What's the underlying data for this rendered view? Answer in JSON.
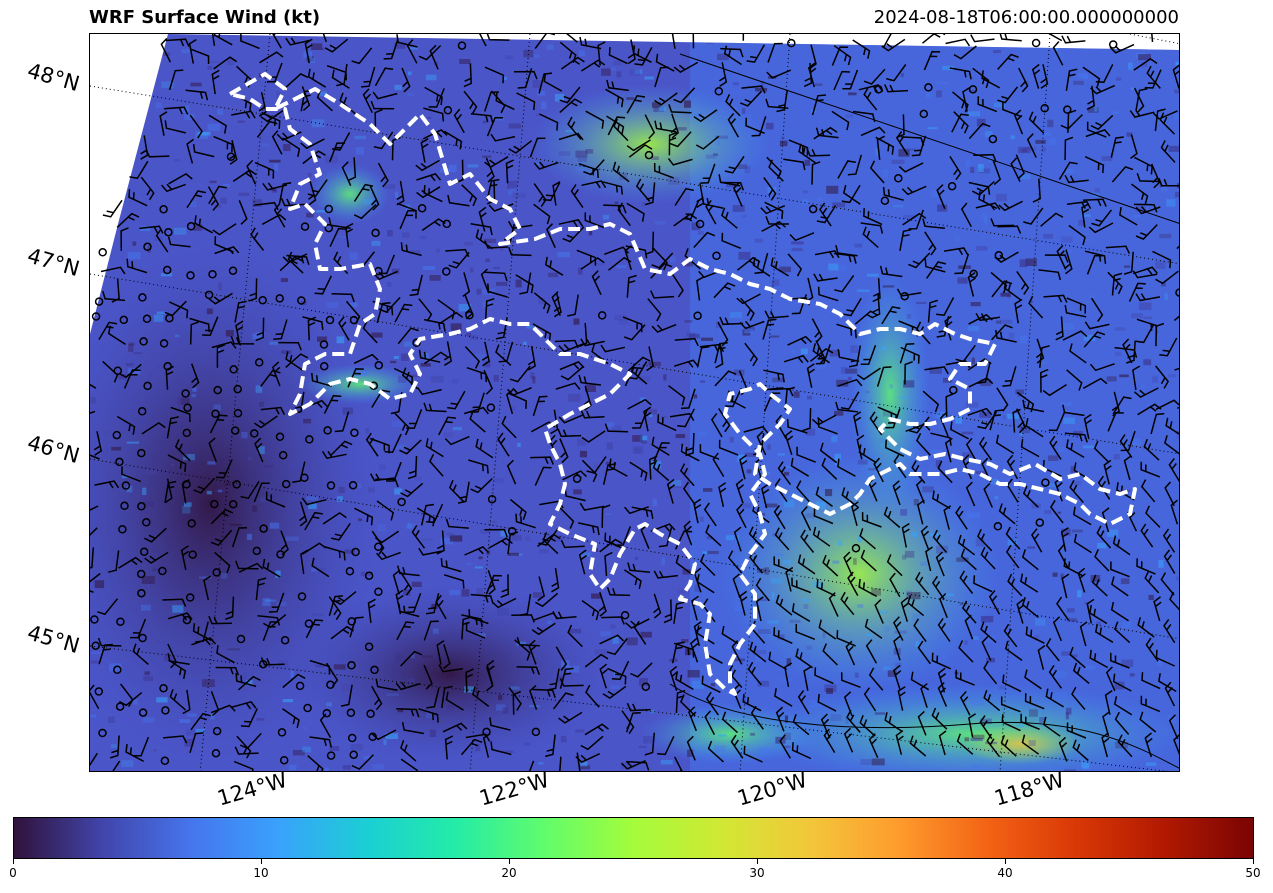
{
  "title": "WRF Surface Wind (kt)",
  "timestamp": "2024-08-18T06:00:00.000000000",
  "lat_labels": [
    "48°N",
    "47°N",
    "46°N",
    "45°N"
  ],
  "lon_labels": [
    "124°W",
    "122°W",
    "120°W",
    "118°W"
  ],
  "colorbar": {
    "min": 0,
    "max": 50,
    "ticks": [
      "0",
      "10",
      "20",
      "30",
      "40",
      "50"
    ],
    "colormap": "turbo",
    "colors": [
      "#30123b",
      "#4145ab",
      "#4675ed",
      "#39a2fc",
      "#1bcfd4",
      "#24eca6",
      "#61fc6c",
      "#a4fc3b",
      "#d1e834",
      "#f3c63a",
      "#fe9b2d",
      "#f36315",
      "#d93806",
      "#b11901",
      "#7a0403"
    ]
  },
  "overlays": {
    "field": "surface wind speed (kt)",
    "barbs": "wind barbs",
    "outline": "white dashed boundary"
  }
}
